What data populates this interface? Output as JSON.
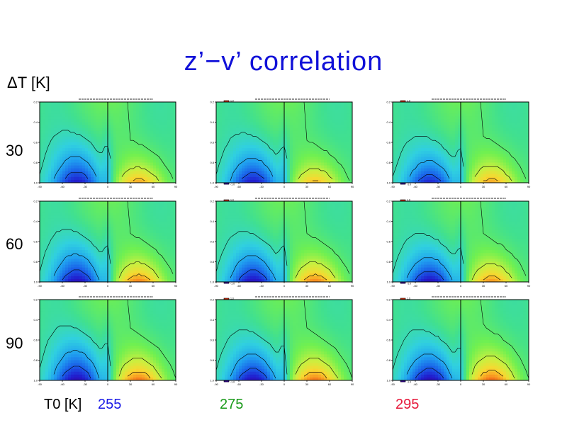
{
  "title": "z’−v’ correlation",
  "row_axis_label": "ΔT [K]",
  "col_axis_label": "T0 [K]",
  "rows": [
    "30",
    "60",
    "90"
  ],
  "columns": [
    {
      "label": "255",
      "color": "#1a1ae6"
    },
    {
      "label": "275",
      "color": "#1a9a1a"
    },
    {
      "label": "295",
      "color": "#e6183a"
    }
  ],
  "chart_data": {
    "type": "heatmap",
    "title": "z’−v’ correlation",
    "description_axes": {
      "rows_label": "ΔT [K]",
      "row_values": [
        30,
        60,
        90
      ],
      "cols_label": "T0 [K]",
      "col_values": [
        255,
        275,
        295
      ]
    },
    "panel_axes": {
      "x_ticks": [
        "-90",
        "-60",
        "-30",
        "0",
        "30",
        "60",
        "90"
      ],
      "y_ticks": [
        "0.2",
        "0.4",
        "0.6",
        "0.8",
        "1.0"
      ]
    },
    "colorbar_ticks": [
      "1.0",
      "0.8",
      "0.6",
      "0.4",
      "0.2",
      "0.0",
      "-0.2",
      "-0.4",
      "-0.6",
      "-0.8",
      "-1.0"
    ],
    "colormap": [
      "#3a00a0",
      "#2020d0",
      "#1a60e8",
      "#20a0f0",
      "#30d0e0",
      "#40e090",
      "#70f050",
      "#c8f040",
      "#f8d830",
      "#f89020",
      "#e83010"
    ],
    "panels": [
      {
        "row": 0,
        "col": 0,
        "neg_strength": 0.85,
        "pos_strength": 0.75,
        "neg_height": 0.75,
        "pos_height": 0.55
      },
      {
        "row": 0,
        "col": 1,
        "neg_strength": 0.85,
        "pos_strength": 0.7,
        "neg_height": 0.7,
        "pos_height": 0.55
      },
      {
        "row": 0,
        "col": 2,
        "neg_strength": 0.8,
        "pos_strength": 0.75,
        "neg_height": 0.65,
        "pos_height": 0.6
      },
      {
        "row": 1,
        "col": 0,
        "neg_strength": 0.9,
        "pos_strength": 0.85,
        "neg_height": 0.75,
        "pos_height": 0.6
      },
      {
        "row": 1,
        "col": 1,
        "neg_strength": 0.9,
        "pos_strength": 0.85,
        "neg_height": 0.7,
        "pos_height": 0.6
      },
      {
        "row": 1,
        "col": 2,
        "neg_strength": 0.9,
        "pos_strength": 0.8,
        "neg_height": 0.65,
        "pos_height": 0.6
      },
      {
        "row": 2,
        "col": 0,
        "neg_strength": 0.92,
        "pos_strength": 0.88,
        "neg_height": 0.8,
        "pos_height": 0.65
      },
      {
        "row": 2,
        "col": 1,
        "neg_strength": 0.9,
        "pos_strength": 0.88,
        "neg_height": 0.7,
        "pos_height": 0.65
      },
      {
        "row": 2,
        "col": 2,
        "neg_strength": 0.92,
        "pos_strength": 0.9,
        "neg_height": 0.7,
        "pos_height": 0.7
      }
    ]
  }
}
